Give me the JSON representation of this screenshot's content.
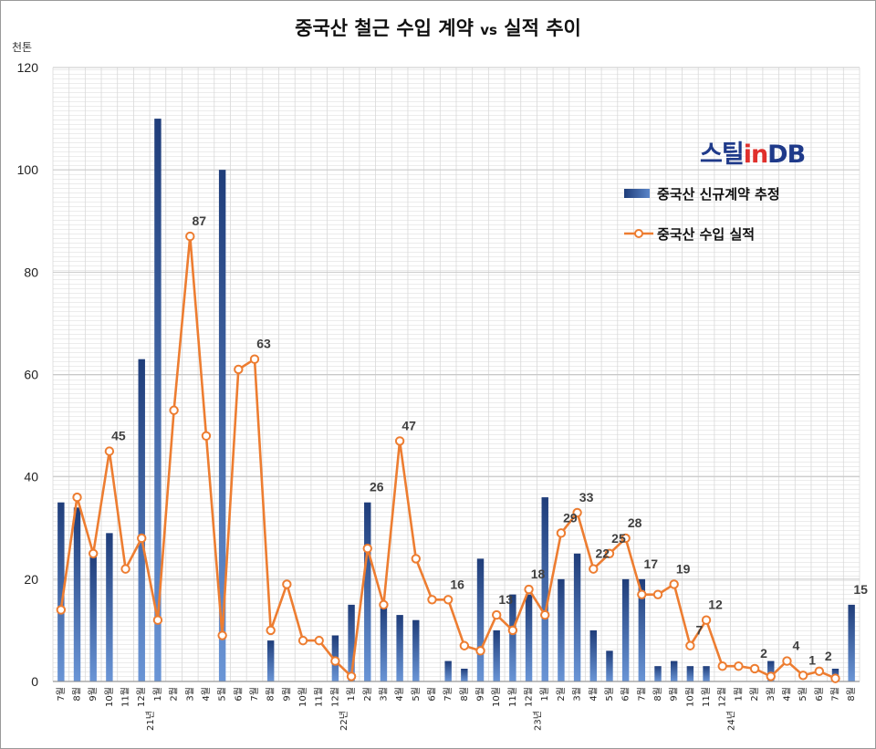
{
  "title": {
    "main": "중국산 철근 수입 계약",
    "vs": "vs",
    "end": "실적 추이"
  },
  "unit": "천톤",
  "logo": {
    "part1": "스틸",
    "part2": "in",
    "part3": "DB"
  },
  "colors": {
    "bar_dark": "#1f3d7a",
    "bar_light": "#6a95d6",
    "line": "#ed7d31",
    "marker_fill": "#ffffff",
    "grid": "#d9d9d9"
  },
  "legend": {
    "bar_label": "중국산 신규계약 추정",
    "line_label": "중국산 수입 실적"
  },
  "chart_data": {
    "type": "bar",
    "title": "중국산 철근 수입 계약 vs 실적 추이",
    "ylabel": "천톤",
    "ylim": [
      0,
      120
    ],
    "yticks": [
      0,
      20,
      40,
      60,
      80,
      100,
      120
    ],
    "grid": true,
    "legend_position": "right",
    "categories": [
      "20년 7월",
      "8월",
      "9월",
      "10월",
      "11월",
      "12월",
      "21년 1월",
      "2월",
      "3월",
      "4월",
      "5월",
      "6월",
      "7월",
      "8월",
      "9월",
      "10월",
      "11월",
      "12월",
      "22년 1월",
      "2월",
      "3월",
      "4월",
      "5월",
      "6월",
      "7월",
      "8월",
      "9월",
      "10월",
      "11월",
      "12월",
      "23년 1월",
      "2월",
      "3월",
      "4월",
      "5월",
      "6월",
      "7월",
      "8월",
      "9월",
      "10월",
      "11월",
      "12월",
      "24년 1월",
      "2월",
      "3월",
      "4월",
      "5월",
      "6월",
      "7월",
      "8월"
    ],
    "tick_labels": [
      "7월",
      "8월",
      "9월",
      "10월",
      "11월",
      "12월",
      "1월",
      "2월",
      "3월",
      "4월",
      "5월",
      "6월",
      "7월",
      "8월",
      "9월",
      "10월",
      "11월",
      "12월",
      "1월",
      "2월",
      "3월",
      "4월",
      "5월",
      "6월",
      "7월",
      "8월",
      "9월",
      "10월",
      "11월",
      "12월",
      "1월",
      "2월",
      "3월",
      "4월",
      "5월",
      "6월",
      "7월",
      "8월",
      "9월",
      "10월",
      "11월",
      "12월",
      "1월",
      "2월",
      "3월",
      "4월",
      "5월",
      "6월",
      "7월",
      "8월"
    ],
    "year_labels": [
      {
        "index": 6,
        "label": "21년"
      },
      {
        "index": 18,
        "label": "22년"
      },
      {
        "index": 30,
        "label": "23년"
      },
      {
        "index": 42,
        "label": "24년"
      }
    ],
    "series": [
      {
        "name": "중국산 신규계약 추정",
        "type": "bar",
        "values": [
          35,
          34,
          25,
          29,
          0,
          63,
          110,
          0,
          0,
          0,
          100,
          0,
          0,
          8,
          0,
          0,
          0,
          9,
          15,
          35,
          15,
          13,
          12,
          0,
          4,
          2.5,
          24,
          10,
          17,
          17,
          36,
          20,
          25,
          10,
          6,
          20,
          20,
          3,
          4,
          3,
          3,
          0,
          0,
          0,
          4,
          0,
          0,
          0,
          2.5,
          15
        ]
      },
      {
        "name": "중국산 수입 실적",
        "type": "line",
        "values": [
          14,
          36,
          25,
          45,
          22,
          28,
          12,
          53,
          87,
          48,
          9,
          61,
          63,
          10,
          19,
          8,
          8,
          4,
          1,
          26,
          15,
          47,
          24,
          16,
          16,
          7,
          6,
          13,
          10,
          18,
          13,
          29,
          33,
          22,
          25,
          28,
          17,
          17,
          19,
          7,
          12,
          3,
          3,
          2.5,
          1,
          4,
          1.2,
          2,
          0.6,
          null
        ]
      }
    ],
    "annotations": [
      {
        "index": 3,
        "text": "45"
      },
      {
        "index": 8,
        "text": "87"
      },
      {
        "index": 12,
        "text": "63"
      },
      {
        "index": 19,
        "text": "26"
      },
      {
        "index": 21,
        "text": "47"
      },
      {
        "index": 24,
        "text": "16"
      },
      {
        "index": 27,
        "text": "13"
      },
      {
        "index": 29,
        "text": "18"
      },
      {
        "index": 31,
        "text": "29"
      },
      {
        "index": 32,
        "text": "33"
      },
      {
        "index": 33,
        "text": "22"
      },
      {
        "index": 34,
        "text": "25"
      },
      {
        "index": 35,
        "text": "28"
      },
      {
        "index": 36,
        "text": "17"
      },
      {
        "index": 38,
        "text": "19"
      },
      {
        "index": 39,
        "text": "7"
      },
      {
        "index": 40,
        "text": "12"
      },
      {
        "index": 43,
        "text": "2"
      },
      {
        "index": 45,
        "text": "4"
      },
      {
        "index": 46,
        "text": "1"
      },
      {
        "index": 47,
        "text": "2"
      },
      {
        "index": 49,
        "text": "15"
      }
    ]
  }
}
